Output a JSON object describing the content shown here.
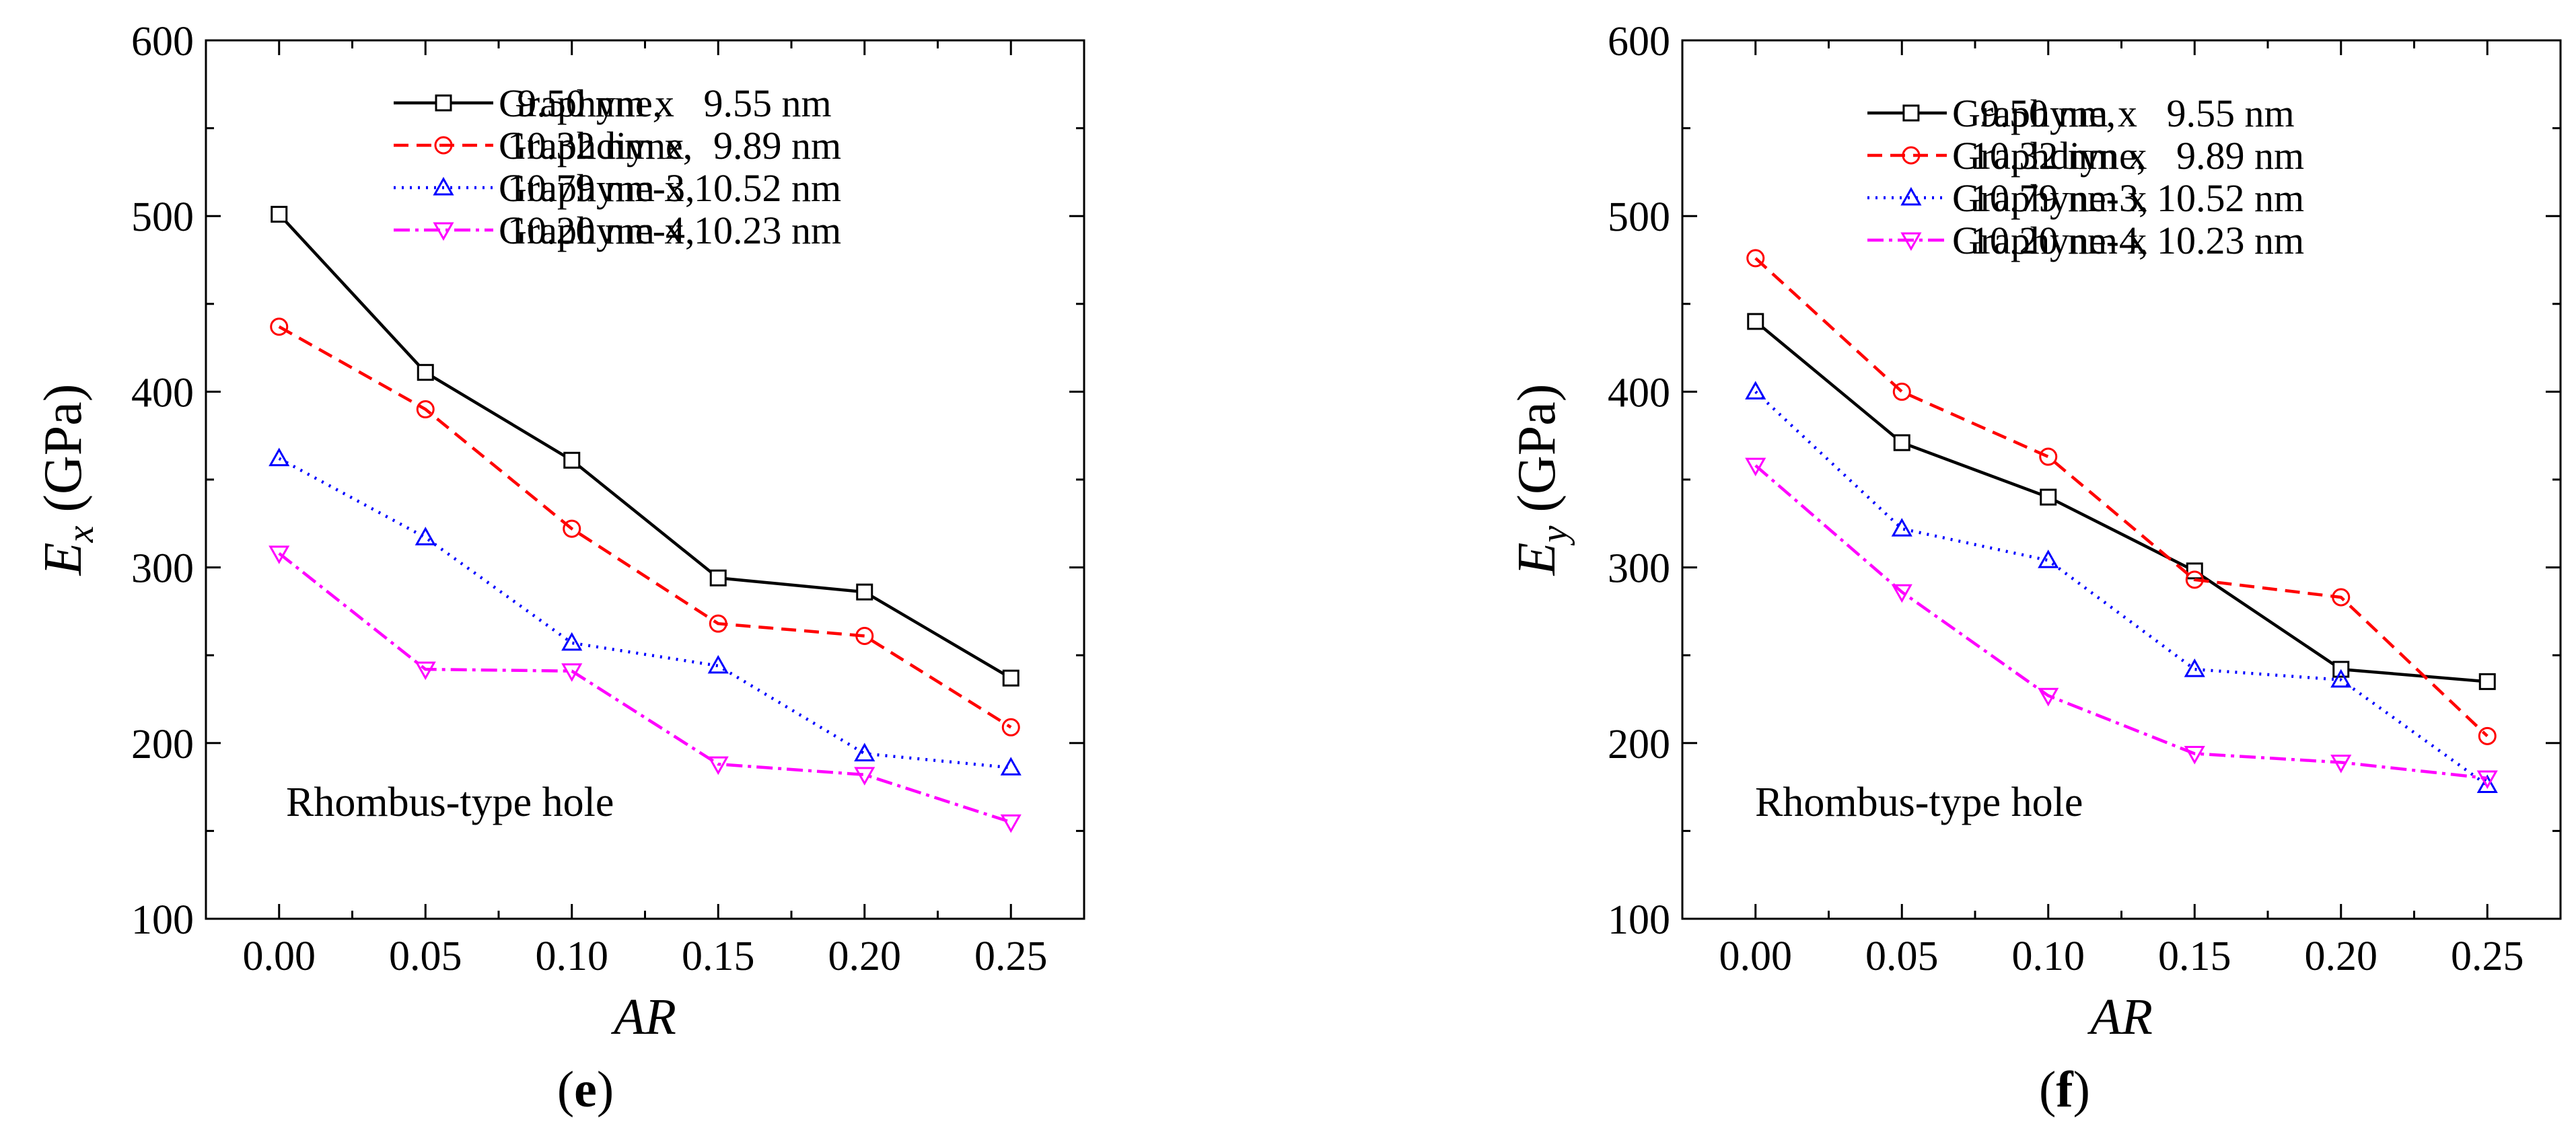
{
  "chart_data": [
    {
      "panel_label": "e",
      "type": "line",
      "ylabel_main": "E",
      "ylabel_sub": "x",
      "ylabel_unit": "(GPa)",
      "xlabel": "AR",
      "ylim": [
        100,
        600
      ],
      "xlim": [
        -0.025,
        0.275
      ],
      "x": [
        0.0,
        0.05,
        0.1,
        0.15,
        0.2,
        0.25
      ],
      "x_tick_labels": [
        "0.00",
        "0.05",
        "0.10",
        "0.15",
        "0.20",
        "0.25"
      ],
      "y_ticks": [
        100,
        200,
        300,
        400,
        500,
        600
      ],
      "annotation": "Rhombus-type hole",
      "series": [
        {
          "name": "Graphyne,",
          "size": "9.50 nm x   9.55 nm",
          "color": "#000000",
          "dash": "",
          "marker": "square",
          "values": [
            501,
            411,
            361,
            294,
            286,
            237
          ]
        },
        {
          "name": "Graphdiyne,",
          "size": "10.32 nm x   9.89 nm",
          "color": "#ff0000",
          "dash": "22,12",
          "marker": "circle",
          "values": [
            437,
            390,
            322,
            268,
            261,
            209
          ]
        },
        {
          "name": "Graphyne-3,",
          "size": "10.79 nm x 10.52 nm",
          "color": "#0000ff",
          "dash": "3,9",
          "marker": "triangle-up",
          "values": [
            362,
            317,
            257,
            244,
            194,
            186
          ]
        },
        {
          "name": "Graphyne-4,",
          "size": "10.20 nm x 10.23 nm",
          "color": "#ff00ff",
          "dash": "24,8,5,8",
          "marker": "triangle-down",
          "values": [
            308,
            242,
            241,
            188,
            182,
            155
          ]
        }
      ]
    },
    {
      "panel_label": "f",
      "type": "line",
      "ylabel_main": "E",
      "ylabel_sub": "y",
      "ylabel_unit": "(GPa)",
      "xlabel": "AR",
      "ylim": [
        100,
        600
      ],
      "xlim": [
        -0.025,
        0.275
      ],
      "x": [
        0.0,
        0.05,
        0.1,
        0.15,
        0.2,
        0.25
      ],
      "x_tick_labels": [
        "0.00",
        "0.05",
        "0.10",
        "0.15",
        "0.20",
        "0.25"
      ],
      "y_ticks": [
        100,
        200,
        300,
        400,
        500,
        600
      ],
      "annotation": "Rhombus-type hole",
      "series": [
        {
          "name": "Graphyne,",
          "size": "9.50 nm x   9.55 nm",
          "color": "#000000",
          "dash": "",
          "marker": "square",
          "values": [
            440,
            371,
            340,
            298,
            242,
            235
          ]
        },
        {
          "name": "Graphdiyne,",
          "size": "10.32 nm x   9.89 nm",
          "color": "#ff0000",
          "dash": "22,12",
          "marker": "circle",
          "values": [
            476,
            400,
            363,
            293,
            283,
            204
          ]
        },
        {
          "name": "Graphyne-3,",
          "size": "10.79 nm x 10.52 nm",
          "color": "#0000ff",
          "dash": "3,9",
          "marker": "triangle-up",
          "values": [
            400,
            322,
            304,
            242,
            236,
            176
          ]
        },
        {
          "name": "Graphyne-4,",
          "size": "10.20 nm x 10.23 nm",
          "color": "#ff00ff",
          "dash": "24,8,5,8",
          "marker": "triangle-down",
          "values": [
            358,
            286,
            227,
            194,
            189,
            180
          ]
        }
      ]
    }
  ]
}
